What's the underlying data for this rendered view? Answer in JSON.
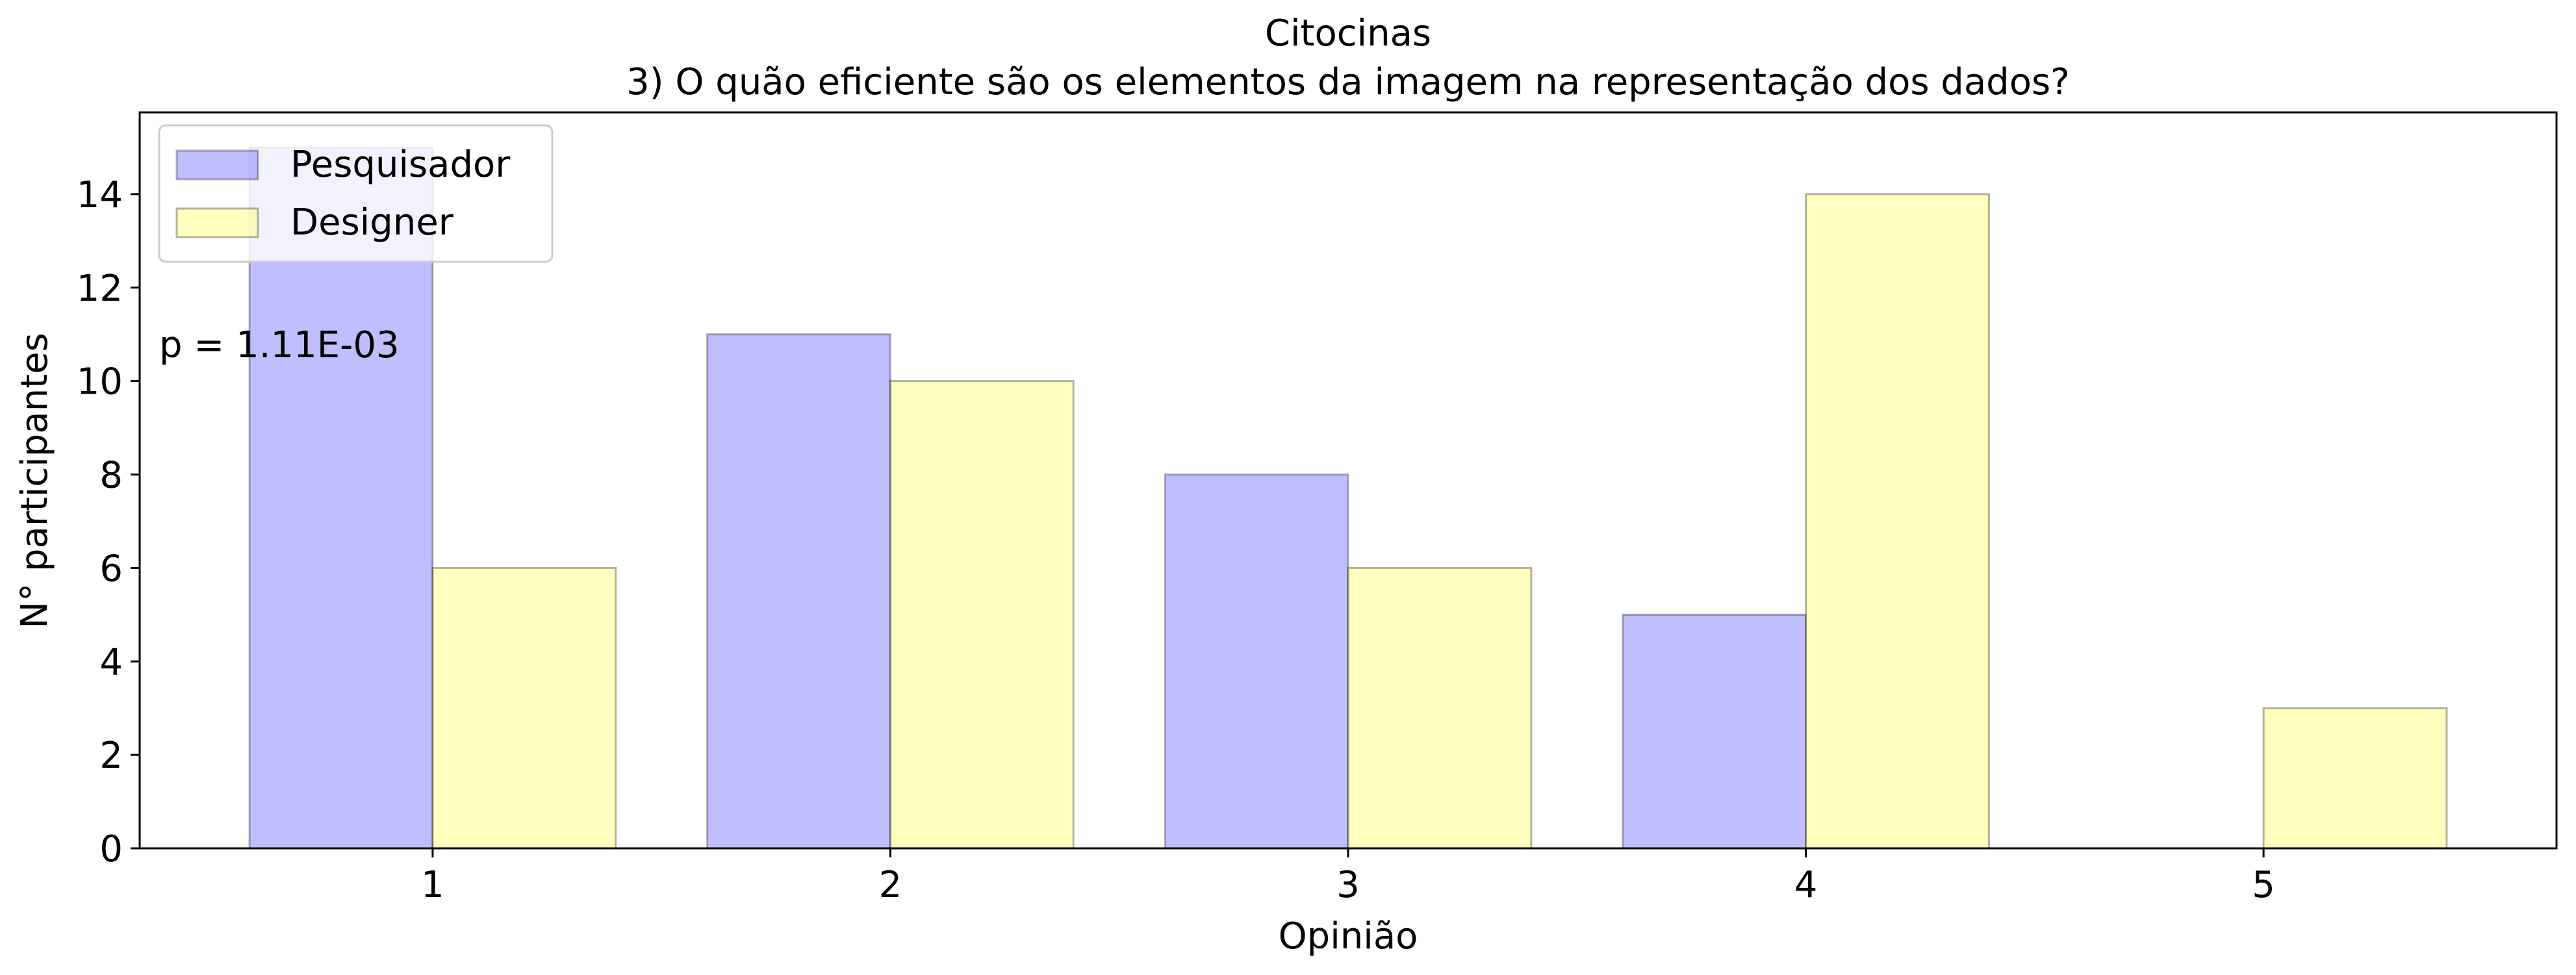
{
  "chart_data": {
    "type": "bar",
    "title": "Citocinas",
    "subtitle": "3) O quão eficiente são os elementos da imagem na representação dos dados?",
    "xlabel": "Opinião",
    "ylabel": "N° participantes",
    "categories": [
      "1",
      "2",
      "3",
      "4",
      "5"
    ],
    "series": [
      {
        "name": "Pesquisador",
        "values": [
          15,
          11,
          8,
          5,
          0
        ],
        "color": "#8080ff"
      },
      {
        "name": "Designer",
        "values": [
          6,
          10,
          6,
          14,
          3
        ],
        "color": "#ffff80"
      }
    ],
    "ylim": [
      0,
      15.75
    ],
    "yticks": [
      0,
      2,
      4,
      6,
      8,
      10,
      12,
      14
    ],
    "xlim": [
      0.36,
      5.64
    ],
    "grid": false,
    "legend_position": "top-left",
    "annotation": "p = 1.11E-03"
  }
}
